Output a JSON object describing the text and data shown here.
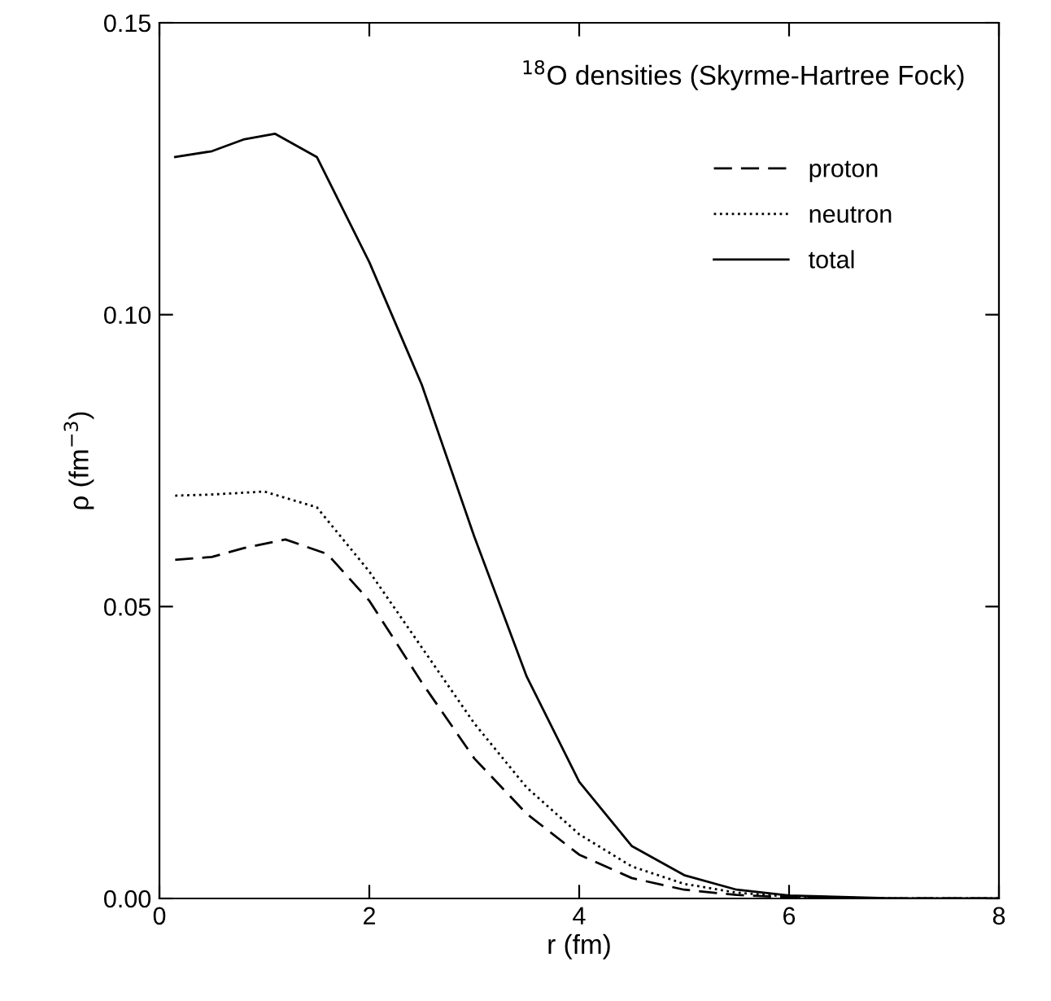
{
  "chart_data": {
    "type": "line",
    "annotations": [
      "$^{18}$O densities (Skyrme-Hartree Fock)"
    ],
    "xlabel": "r (fm)",
    "ylabel": "ρ (fm$^{−3}$)",
    "xlim": [
      0,
      8
    ],
    "ylim": [
      0,
      0.15
    ],
    "xticks": [
      0,
      2,
      4,
      6,
      8
    ],
    "yticks": [
      {
        "value": 0,
        "label": "0.00"
      },
      {
        "value": 0.05,
        "label": "0.05"
      },
      {
        "value": 0.1,
        "label": "0.10"
      },
      {
        "value": 0.15,
        "label": "0.15"
      }
    ],
    "grid": false,
    "legend": "top right",
    "marker": "none",
    "series": [
      {
        "name": "proton",
        "color": "#000000",
        "line_style": "dashed",
        "x": [
          0.15,
          0.5,
          0.8,
          1.2,
          1.6,
          2.0,
          2.5,
          3.0,
          3.5,
          4.0,
          4.5,
          5.0,
          5.5,
          6.0,
          7.0,
          8.0
        ],
        "values": [
          0.058,
          0.0585,
          0.06,
          0.0615,
          0.059,
          0.051,
          0.037,
          0.024,
          0.0145,
          0.0075,
          0.0035,
          0.0015,
          0.0006,
          0.0002,
          0.0,
          0.0
        ]
      },
      {
        "name": "neutron",
        "color": "#000000",
        "line_style": "dotted",
        "x": [
          0.15,
          0.5,
          1.0,
          1.5,
          2.0,
          2.5,
          3.0,
          3.5,
          4.0,
          4.5,
          5.0,
          5.5,
          6.0,
          7.0,
          8.0
        ],
        "values": [
          0.069,
          0.0692,
          0.0697,
          0.067,
          0.056,
          0.043,
          0.03,
          0.019,
          0.011,
          0.0055,
          0.0025,
          0.001,
          0.0003,
          0.0,
          0.0
        ]
      },
      {
        "name": "total",
        "color": "#000000",
        "line_style": "solid",
        "x": [
          0.15,
          0.5,
          0.8,
          1.1,
          1.5,
          2.0,
          2.5,
          3.0,
          3.5,
          4.0,
          4.5,
          5.0,
          5.5,
          6.0,
          7.0,
          8.0
        ],
        "values": [
          0.127,
          0.128,
          0.13,
          0.131,
          0.127,
          0.109,
          0.088,
          0.062,
          0.038,
          0.02,
          0.009,
          0.004,
          0.0015,
          0.0005,
          0.0,
          0.0
        ]
      }
    ]
  }
}
